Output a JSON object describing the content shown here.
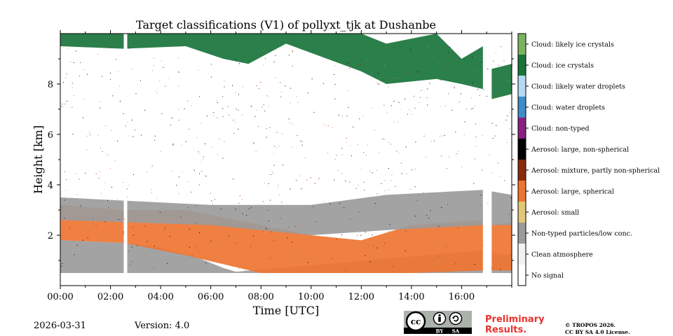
{
  "footer": {
    "date": "2026-03-31",
    "version": "Version: 4.0",
    "preliminary_line1": "Preliminary",
    "preliminary_line2": "Results.",
    "copyright_line1": "© TROPOS 2026.",
    "copyright_line2": "CC BY SA 4.0 License.",
    "license_badge": {
      "main": "cc",
      "by": "BY",
      "sa": "SA",
      "icons": [
        "cc-icon",
        "attribution-icon",
        "share-alike-icon"
      ]
    }
  },
  "chart_data": {
    "type": "heatmap",
    "title": "Target classifications (V1) of pollyxt_tjk at Dushanbe",
    "xlabel": "Time [UTC]",
    "ylabel": "Height [km]",
    "xlim_hours": [
      0,
      18
    ],
    "ylim_km": [
      0,
      10
    ],
    "x_ticks": [
      {
        "value": 0,
        "label": "00:00"
      },
      {
        "value": 2,
        "label": "02:00"
      },
      {
        "value": 4,
        "label": "04:00"
      },
      {
        "value": 6,
        "label": "06:00"
      },
      {
        "value": 8,
        "label": "08:00"
      },
      {
        "value": 10,
        "label": "10:00"
      },
      {
        "value": 12,
        "label": "12:00"
      },
      {
        "value": 14,
        "label": "14:00"
      },
      {
        "value": 16,
        "label": "16:00"
      }
    ],
    "y_ticks": [
      {
        "value": 2,
        "label": "2"
      },
      {
        "value": 4,
        "label": "4"
      },
      {
        "value": 6,
        "label": "6"
      },
      {
        "value": 8,
        "label": "8"
      }
    ],
    "data_gaps_hours": [
      [
        2.53,
        2.67
      ],
      [
        16.85,
        17.2
      ]
    ],
    "colorbar": [
      {
        "label": "No signal",
        "color": "#ffffff"
      },
      {
        "label": "Clean atmosphere",
        "color": "#f2f2f2"
      },
      {
        "label": "Non-typed particles/low conc.",
        "color": "#9b9b9b"
      },
      {
        "label": "Aerosol: small",
        "color": "#e0c876"
      },
      {
        "label": "Aerosol: large, spherical",
        "color": "#ee7531"
      },
      {
        "label": "Aerosol: mixture, partly non-spherical",
        "color": "#8b2a0b"
      },
      {
        "label": "Aerosol: large, non-spherical",
        "color": "#000000"
      },
      {
        "label": "Cloud: non-typed",
        "color": "#8a1f82"
      },
      {
        "label": "Cloud: water droplets",
        "color": "#3c8dc8"
      },
      {
        "label": "Cloud: likely water droplets",
        "color": "#b5d9f3"
      },
      {
        "label": "Cloud: ice crystals",
        "color": "#19743b"
      },
      {
        "label": "Cloud: likely ice crystals",
        "color": "#7bb45e"
      }
    ],
    "layers": [
      {
        "class": "Non-typed particles/low conc.",
        "description": "dense near-surface layer",
        "points": [
          [
            0.0,
            0.5,
            1.8
          ],
          [
            2.5,
            0.5,
            1.7
          ],
          [
            4.0,
            0.5,
            1.5
          ],
          [
            5.5,
            0.5,
            1.1
          ],
          [
            6.5,
            0.5,
            0.7
          ],
          [
            7.0,
            0.5,
            0.55
          ],
          [
            16.85,
            0.5,
            1.4
          ],
          [
            17.2,
            0.5,
            1.3
          ],
          [
            18.0,
            0.5,
            1.2
          ]
        ]
      },
      {
        "class": "Aerosol: large, spherical",
        "description": "boundary-layer aerosol",
        "points": [
          [
            0.0,
            1.8,
            3.2
          ],
          [
            2.5,
            1.7,
            3.0
          ],
          [
            5.0,
            1.2,
            3.0
          ],
          [
            8.0,
            0.5,
            2.4
          ],
          [
            10.0,
            0.5,
            2.0
          ],
          [
            12.0,
            0.5,
            1.8
          ],
          [
            14.0,
            0.5,
            2.4
          ],
          [
            16.85,
            0.6,
            2.6
          ],
          [
            17.2,
            0.6,
            2.4
          ],
          [
            18.0,
            0.6,
            2.5
          ]
        ]
      },
      {
        "class": "Non-typed particles/low conc.",
        "description": "mixed layer top",
        "points": [
          [
            0.0,
            2.6,
            3.5
          ],
          [
            6.0,
            2.4,
            3.2
          ],
          [
            10.0,
            2.0,
            3.2
          ],
          [
            13.0,
            2.2,
            3.6
          ],
          [
            16.85,
            2.4,
            3.8
          ],
          [
            18.0,
            2.4,
            3.6
          ]
        ]
      },
      {
        "class": "Cloud: ice crystals",
        "description": "cirrus near top",
        "points": [
          [
            0.0,
            9.5,
            10.0
          ],
          [
            2.5,
            9.4,
            10.0
          ],
          [
            5.0,
            9.5,
            10.0
          ],
          [
            6.5,
            9.0,
            10.0
          ],
          [
            7.5,
            8.8,
            10.0
          ],
          [
            9.0,
            9.6,
            10.0
          ],
          [
            12.0,
            8.5,
            10.0
          ],
          [
            13.0,
            8.0,
            9.6
          ],
          [
            15.0,
            8.2,
            10.0
          ],
          [
            16.0,
            8.0,
            9.0
          ],
          [
            16.85,
            7.8,
            9.5
          ],
          [
            17.2,
            7.4,
            8.6
          ],
          [
            18.0,
            7.6,
            8.8
          ]
        ]
      }
    ]
  }
}
